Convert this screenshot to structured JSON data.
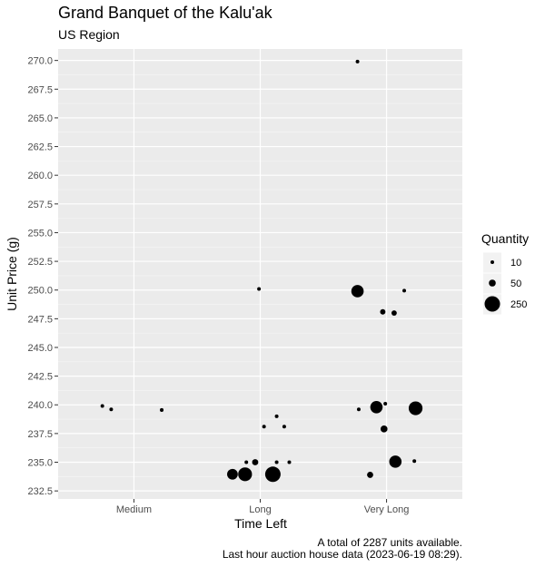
{
  "chart_data": {
    "type": "scatter",
    "title": "Grand Banquet of the Kalu'ak",
    "subtitle": "US Region",
    "xlabel": "Time Left",
    "ylabel": "Unit Price (g)",
    "categories": [
      "Medium",
      "Long",
      "Very Long"
    ],
    "ylim": [
      231.8,
      271.0
    ],
    "yticks": [
      232.5,
      235.0,
      237.5,
      240.0,
      242.5,
      245.0,
      247.5,
      250.0,
      252.5,
      255.0,
      257.5,
      260.0,
      262.5,
      265.0,
      267.5,
      270.0
    ],
    "ytick_labels": [
      "232.5",
      "235.0",
      "237.5",
      "240.0",
      "242.5",
      "245.0",
      "247.5",
      "250.0",
      "252.5",
      "255.0",
      "257.5",
      "260.0",
      "262.5",
      "265.0",
      "267.5",
      "270.0"
    ],
    "grid": true,
    "size_legend": {
      "title": "Quantity",
      "position": "right",
      "entries": [
        {
          "label": "10",
          "value": 10
        },
        {
          "label": "50",
          "value": 50
        },
        {
          "label": "250",
          "value": 250
        }
      ]
    },
    "points": [
      {
        "x": "Medium",
        "jitter": -0.25,
        "y": 239.9,
        "quantity": 12
      },
      {
        "x": "Medium",
        "jitter": -0.18,
        "y": 239.6,
        "quantity": 8
      },
      {
        "x": "Medium",
        "jitter": 0.22,
        "y": 239.55,
        "quantity": 14
      },
      {
        "x": "Long",
        "jitter": -0.01,
        "y": 250.1,
        "quantity": 6
      },
      {
        "x": "Long",
        "jitter": 0.13,
        "y": 239.0,
        "quantity": 14
      },
      {
        "x": "Long",
        "jitter": 0.03,
        "y": 238.1,
        "quantity": 6
      },
      {
        "x": "Long",
        "jitter": 0.19,
        "y": 238.1,
        "quantity": 14
      },
      {
        "x": "Long",
        "jitter": -0.11,
        "y": 235.0,
        "quantity": 10
      },
      {
        "x": "Long",
        "jitter": -0.04,
        "y": 235.0,
        "quantity": 40
      },
      {
        "x": "Long",
        "jitter": 0.13,
        "y": 235.0,
        "quantity": 14
      },
      {
        "x": "Long",
        "jitter": 0.23,
        "y": 235.0,
        "quantity": 14
      },
      {
        "x": "Long",
        "jitter": -0.22,
        "y": 233.95,
        "quantity": 120
      },
      {
        "x": "Long",
        "jitter": -0.12,
        "y": 233.95,
        "quantity": 200
      },
      {
        "x": "Long",
        "jitter": 0.1,
        "y": 233.95,
        "quantity": 250
      },
      {
        "x": "Very Long",
        "jitter": -0.23,
        "y": 269.9,
        "quantity": 10
      },
      {
        "x": "Very Long",
        "jitter": -0.23,
        "y": 249.9,
        "quantity": 160
      },
      {
        "x": "Very Long",
        "jitter": 0.14,
        "y": 249.95,
        "quantity": 4
      },
      {
        "x": "Very Long",
        "jitter": -0.03,
        "y": 248.1,
        "quantity": 30
      },
      {
        "x": "Very Long",
        "jitter": 0.06,
        "y": 248.0,
        "quantity": 30
      },
      {
        "x": "Very Long",
        "jitter": -0.22,
        "y": 239.6,
        "quantity": 4
      },
      {
        "x": "Very Long",
        "jitter": -0.08,
        "y": 239.8,
        "quantity": 160
      },
      {
        "x": "Very Long",
        "jitter": -0.01,
        "y": 240.1,
        "quantity": 10
      },
      {
        "x": "Very Long",
        "jitter": 0.23,
        "y": 239.7,
        "quantity": 200
      },
      {
        "x": "Very Long",
        "jitter": -0.02,
        "y": 237.9,
        "quantity": 50
      },
      {
        "x": "Very Long",
        "jitter": 0.05,
        "y": 235.0,
        "quantity": 30
      },
      {
        "x": "Very Long",
        "jitter": 0.07,
        "y": 235.05,
        "quantity": 160
      },
      {
        "x": "Very Long",
        "jitter": 0.22,
        "y": 235.1,
        "quantity": 14
      },
      {
        "x": "Very Long",
        "jitter": -0.13,
        "y": 233.9,
        "quantity": 40
      }
    ]
  },
  "caption": {
    "line1": "A total of 2287 units available.",
    "line2": "Last hour auction house data (2023-06-19 08:29)."
  }
}
